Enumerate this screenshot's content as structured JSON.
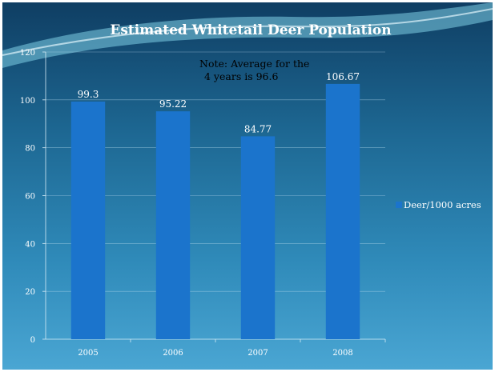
{
  "chart_data": {
    "type": "bar",
    "title": "Estimated Whitetail Deer Population",
    "categories": [
      "2005",
      "2006",
      "2007",
      "2008"
    ],
    "series": [
      {
        "name": "Deer/1000 acres",
        "values": [
          99.3,
          95.22,
          84.77,
          106.67
        ]
      }
    ],
    "data_labels": [
      "99.3",
      "95.22",
      "84.77",
      "106.67"
    ],
    "ylim": [
      0,
      120
    ],
    "yticks": [
      0,
      20,
      40,
      60,
      80,
      100,
      120
    ],
    "grid": true,
    "legend_position": "right",
    "annotation": [
      "Note: Average for the",
      "4 years is 96.6"
    ],
    "bar_color": "#1b74cc",
    "text_color": "#ffffff",
    "note_color": "#000000"
  }
}
